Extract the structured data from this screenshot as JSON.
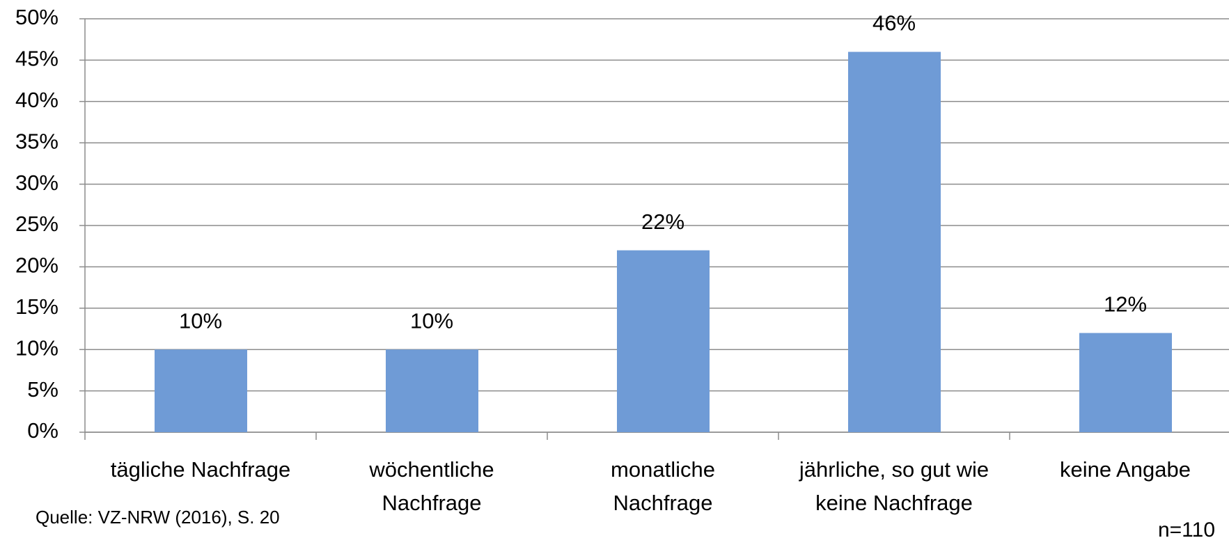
{
  "chart_data": {
    "type": "bar",
    "categories": [
      "tägliche Nachfrage",
      "wöchentliche\nNachfrage",
      "monatliche\nNachfrage",
      "jährliche, so gut wie\nkeine Nachfrage",
      "keine Angabe"
    ],
    "values": [
      10,
      10,
      22,
      46,
      12
    ],
    "value_labels": [
      "10%",
      "10%",
      "22%",
      "46%",
      "12%"
    ],
    "color": "#6f9bd6",
    "ylim": [
      0,
      50
    ],
    "yticks": [
      {
        "value": 0,
        "label": "0%"
      },
      {
        "value": 5,
        "label": "5%"
      },
      {
        "value": 10,
        "label": "10%"
      },
      {
        "value": 15,
        "label": "15%"
      },
      {
        "value": 20,
        "label": "20%"
      },
      {
        "value": 25,
        "label": "25%"
      },
      {
        "value": 30,
        "label": "30%"
      },
      {
        "value": 35,
        "label": "35%"
      },
      {
        "value": 40,
        "label": "40%"
      },
      {
        "value": 45,
        "label": "45%"
      },
      {
        "value": 50,
        "label": "50%"
      }
    ],
    "grid": true,
    "source": "Quelle: VZ-NRW (2016), S. 20",
    "sample_size": "n=110"
  }
}
